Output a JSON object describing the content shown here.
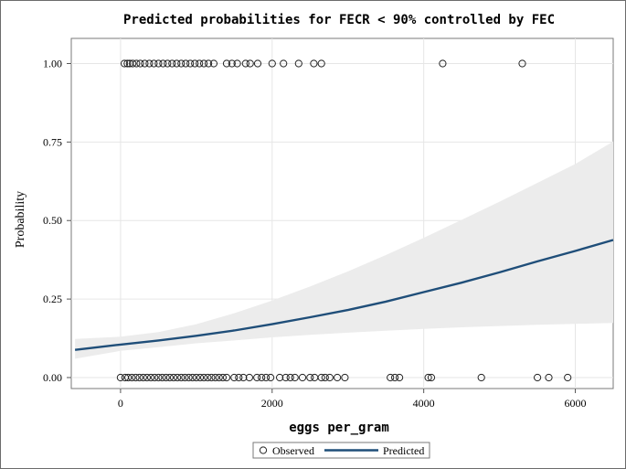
{
  "chart_data": {
    "type": "scatter",
    "title": "Predicted probabilities for FECR < 90% controlled by FEC",
    "xlabel": "eggs per_gram",
    "ylabel": "Probability",
    "xlim": [
      -650,
      6500
    ],
    "ylim": [
      -0.035,
      1.08
    ],
    "xticks": [
      0,
      2000,
      4000,
      6000
    ],
    "yticks": [
      0.0,
      0.25,
      0.5,
      0.75,
      1.0
    ],
    "xtick_labels": [
      "0",
      "2000",
      "4000",
      "6000"
    ],
    "ytick_labels": [
      "0.00",
      "0.25",
      "0.50",
      "0.75",
      "1.00"
    ],
    "grid": true,
    "legend": {
      "placement": "bottom-center",
      "entries": [
        "Observed",
        "Predicted"
      ]
    },
    "colors": {
      "predicted": "#1f4e79",
      "band": "#ececec",
      "observed": "#222222"
    },
    "observed_y1": [
      {
        "x": 50,
        "y": 1
      },
      {
        "x": 90,
        "y": 1
      },
      {
        "x": 120,
        "y": 1
      },
      {
        "x": 160,
        "y": 1
      },
      {
        "x": 210,
        "y": 1
      },
      {
        "x": 260,
        "y": 1
      },
      {
        "x": 320,
        "y": 1
      },
      {
        "x": 380,
        "y": 1
      },
      {
        "x": 440,
        "y": 1
      },
      {
        "x": 500,
        "y": 1
      },
      {
        "x": 560,
        "y": 1
      },
      {
        "x": 620,
        "y": 1
      },
      {
        "x": 680,
        "y": 1
      },
      {
        "x": 740,
        "y": 1
      },
      {
        "x": 800,
        "y": 1
      },
      {
        "x": 860,
        "y": 1
      },
      {
        "x": 920,
        "y": 1
      },
      {
        "x": 980,
        "y": 1
      },
      {
        "x": 1040,
        "y": 1
      },
      {
        "x": 1100,
        "y": 1
      },
      {
        "x": 1160,
        "y": 1
      },
      {
        "x": 1230,
        "y": 1
      },
      {
        "x": 1400,
        "y": 1
      },
      {
        "x": 1470,
        "y": 1
      },
      {
        "x": 1540,
        "y": 1
      },
      {
        "x": 1650,
        "y": 1
      },
      {
        "x": 1710,
        "y": 1
      },
      {
        "x": 1810,
        "y": 1
      },
      {
        "x": 2000,
        "y": 1
      },
      {
        "x": 2150,
        "y": 1
      },
      {
        "x": 2350,
        "y": 1
      },
      {
        "x": 2550,
        "y": 1
      },
      {
        "x": 2650,
        "y": 1
      },
      {
        "x": 4250,
        "y": 1
      },
      {
        "x": 5300,
        "y": 1
      }
    ],
    "observed_y0": [
      {
        "x": 0,
        "y": 0
      },
      {
        "x": 60,
        "y": 0
      },
      {
        "x": 100,
        "y": 0
      },
      {
        "x": 150,
        "y": 0
      },
      {
        "x": 200,
        "y": 0
      },
      {
        "x": 250,
        "y": 0
      },
      {
        "x": 300,
        "y": 0
      },
      {
        "x": 350,
        "y": 0
      },
      {
        "x": 400,
        "y": 0
      },
      {
        "x": 450,
        "y": 0
      },
      {
        "x": 500,
        "y": 0
      },
      {
        "x": 550,
        "y": 0
      },
      {
        "x": 600,
        "y": 0
      },
      {
        "x": 650,
        "y": 0
      },
      {
        "x": 700,
        "y": 0
      },
      {
        "x": 750,
        "y": 0
      },
      {
        "x": 800,
        "y": 0
      },
      {
        "x": 850,
        "y": 0
      },
      {
        "x": 900,
        "y": 0
      },
      {
        "x": 950,
        "y": 0
      },
      {
        "x": 1000,
        "y": 0
      },
      {
        "x": 1050,
        "y": 0
      },
      {
        "x": 1100,
        "y": 0
      },
      {
        "x": 1150,
        "y": 0
      },
      {
        "x": 1200,
        "y": 0
      },
      {
        "x": 1250,
        "y": 0
      },
      {
        "x": 1300,
        "y": 0
      },
      {
        "x": 1350,
        "y": 0
      },
      {
        "x": 1400,
        "y": 0
      },
      {
        "x": 1500,
        "y": 0
      },
      {
        "x": 1560,
        "y": 0
      },
      {
        "x": 1620,
        "y": 0
      },
      {
        "x": 1700,
        "y": 0
      },
      {
        "x": 1800,
        "y": 0
      },
      {
        "x": 1860,
        "y": 0
      },
      {
        "x": 1920,
        "y": 0
      },
      {
        "x": 1980,
        "y": 0
      },
      {
        "x": 2100,
        "y": 0
      },
      {
        "x": 2180,
        "y": 0
      },
      {
        "x": 2240,
        "y": 0
      },
      {
        "x": 2300,
        "y": 0
      },
      {
        "x": 2400,
        "y": 0
      },
      {
        "x": 2500,
        "y": 0
      },
      {
        "x": 2560,
        "y": 0
      },
      {
        "x": 2650,
        "y": 0
      },
      {
        "x": 2700,
        "y": 0
      },
      {
        "x": 2760,
        "y": 0
      },
      {
        "x": 2860,
        "y": 0
      },
      {
        "x": 2960,
        "y": 0
      },
      {
        "x": 3560,
        "y": 0
      },
      {
        "x": 3620,
        "y": 0
      },
      {
        "x": 3680,
        "y": 0
      },
      {
        "x": 4060,
        "y": 0
      },
      {
        "x": 4100,
        "y": 0
      },
      {
        "x": 4760,
        "y": 0
      },
      {
        "x": 5500,
        "y": 0
      },
      {
        "x": 5650,
        "y": 0
      },
      {
        "x": 5900,
        "y": 0
      }
    ],
    "predicted": {
      "x": [
        -600,
        0,
        500,
        1000,
        1500,
        2000,
        2500,
        3000,
        3500,
        4000,
        4500,
        5000,
        5500,
        6000,
        6500
      ],
      "y": [
        0.088,
        0.105,
        0.118,
        0.133,
        0.15,
        0.17,
        0.192,
        0.215,
        0.242,
        0.272,
        0.302,
        0.335,
        0.37,
        0.403,
        0.438
      ]
    },
    "ci_lower": [
      0.06,
      0.085,
      0.097,
      0.109,
      0.118,
      0.128,
      0.136,
      0.143,
      0.149,
      0.155,
      0.16,
      0.164,
      0.168,
      0.171,
      0.174
    ],
    "ci_upper": [
      0.123,
      0.13,
      0.145,
      0.17,
      0.205,
      0.245,
      0.29,
      0.338,
      0.39,
      0.445,
      0.502,
      0.56,
      0.62,
      0.68,
      0.752
    ]
  }
}
